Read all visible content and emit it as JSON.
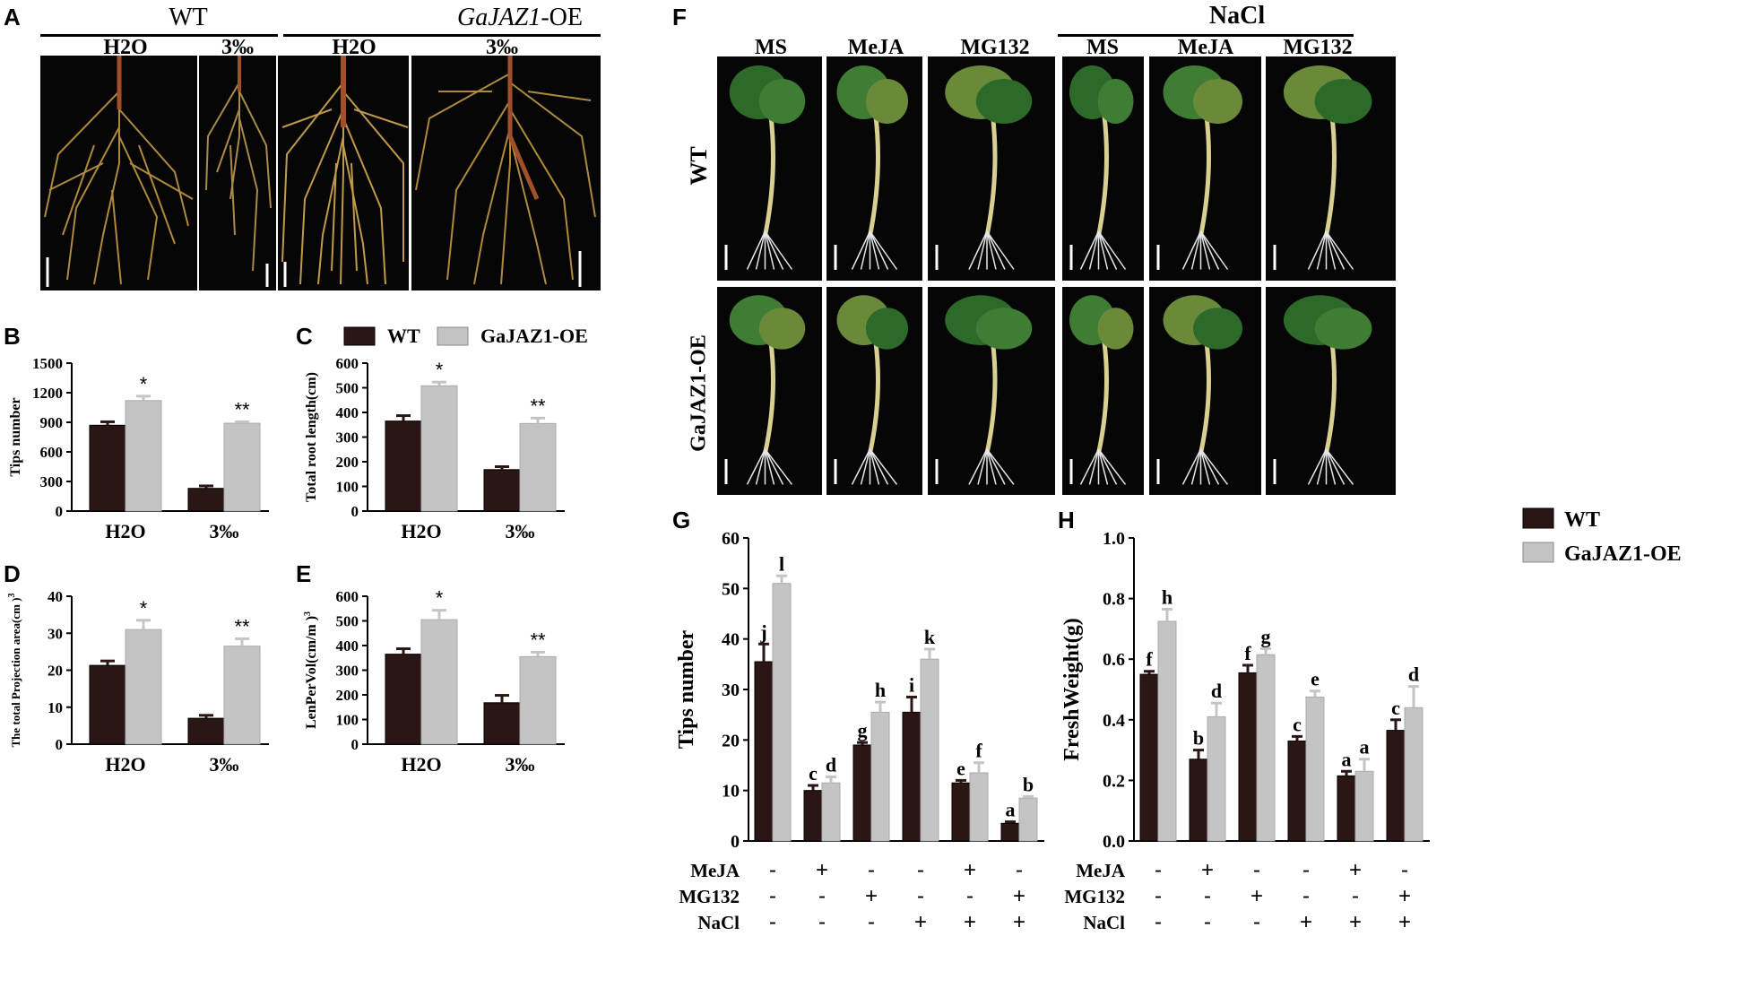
{
  "figure": {
    "letters": {
      "A": "A",
      "B": "B",
      "C": "C",
      "D": "D",
      "E": "E",
      "F": "F",
      "G": "G",
      "H": "H"
    },
    "panel_a": {
      "genotypes": [
        "WT",
        "-OE"
      ],
      "genotype_italic": "GaJAZ1",
      "conditions": [
        "H2O",
        "3‰",
        "H2O",
        "3‰"
      ]
    },
    "panel_f": {
      "nacl": "NaCl",
      "columns": [
        "MS",
        "MeJA",
        "MG132",
        "MS",
        "MeJA",
        "MG132"
      ],
      "rows": [
        "WT",
        "GaJAZ1-OE"
      ]
    }
  },
  "legend_top": {
    "wt": "WT",
    "oe": "GaJAZ1-OE"
  },
  "legend_h": {
    "wt": "WT",
    "oe": "GaJAZ1-OE"
  },
  "colors": {
    "wt": "#2a1614",
    "oe": "#c4c4c4"
  },
  "treatment_table": {
    "labels": [
      "MeJA",
      "MG132",
      "NaCl"
    ],
    "rows": [
      [
        "-",
        "+",
        "-",
        "-",
        "+",
        "-"
      ],
      [
        "-",
        "-",
        "+",
        "-",
        "-",
        "+"
      ],
      [
        "-",
        "-",
        "-",
        "+",
        "+",
        "+"
      ]
    ]
  },
  "chart_data": [
    {
      "panel": "B",
      "type": "bar",
      "ylabel": "Tips number",
      "categories": [
        "H2O",
        "3‰"
      ],
      "ylim": [
        0,
        1500
      ],
      "yticks": [
        0,
        300,
        600,
        900,
        1200,
        1500
      ],
      "series": [
        {
          "name": "WT",
          "values": [
            870,
            230
          ],
          "errors": [
            35,
            25
          ]
        },
        {
          "name": "GaJAZ1-OE",
          "values": [
            1120,
            890
          ],
          "errors": [
            45,
            15
          ]
        }
      ],
      "annotations": [
        "*",
        "**"
      ]
    },
    {
      "panel": "C",
      "type": "bar",
      "ylabel": "Total root length(cm)",
      "categories": [
        "H2O",
        "3‰"
      ],
      "ylim": [
        0,
        600
      ],
      "yticks": [
        0,
        100,
        200,
        300,
        400,
        500,
        600
      ],
      "series": [
        {
          "name": "WT",
          "values": [
            365,
            168
          ],
          "errors": [
            22,
            12
          ]
        },
        {
          "name": "GaJAZ1-OE",
          "values": [
            508,
            355
          ],
          "errors": [
            15,
            22
          ]
        }
      ],
      "annotations": [
        "*",
        "**"
      ]
    },
    {
      "panel": "D",
      "type": "bar",
      "ylabel": "The total Projection area(cm )",
      "ylabel_sup": "3",
      "categories": [
        "H2O",
        "3‰"
      ],
      "ylim": [
        0,
        40
      ],
      "yticks": [
        0,
        10,
        20,
        30,
        40
      ],
      "series": [
        {
          "name": "WT",
          "values": [
            21.3,
            7.0
          ],
          "errors": [
            1.2,
            0.8
          ]
        },
        {
          "name": "GaJAZ1-OE",
          "values": [
            31.0,
            26.5
          ],
          "errors": [
            2.5,
            2.0
          ]
        }
      ],
      "annotations": [
        "*",
        "**"
      ]
    },
    {
      "panel": "E",
      "type": "bar",
      "ylabel": "LenPerVol(cm/m )",
      "ylabel_sup": "3",
      "categories": [
        "H2O",
        "3‰"
      ],
      "ylim": [
        0,
        600
      ],
      "yticks": [
        0,
        100,
        200,
        300,
        400,
        500,
        600
      ],
      "series": [
        {
          "name": "WT",
          "values": [
            365,
            168
          ],
          "errors": [
            22,
            30
          ]
        },
        {
          "name": "GaJAZ1-OE",
          "values": [
            505,
            355
          ],
          "errors": [
            38,
            18
          ]
        }
      ],
      "annotations": [
        "*",
        "**"
      ]
    },
    {
      "panel": "G",
      "type": "bar",
      "ylabel": "Tips number",
      "ylim": [
        0,
        60
      ],
      "yticks": [
        0,
        10,
        20,
        30,
        40,
        50,
        60
      ],
      "series": [
        {
          "name": "WT",
          "values": [
            35.5,
            10,
            19,
            25.5,
            11.5,
            3.5
          ],
          "errors": [
            3.5,
            1,
            0.5,
            3,
            0.5,
            0.3
          ],
          "letters": [
            "j",
            "c",
            "g",
            "i",
            "e",
            "a"
          ]
        },
        {
          "name": "GaJAZ1-OE",
          "values": [
            51,
            11.5,
            25.5,
            36,
            13.5,
            8.5
          ],
          "errors": [
            1.5,
            1.2,
            2,
            2,
            2,
            0.3
          ],
          "letters": [
            "l",
            "d",
            "h",
            "k",
            "f",
            "b"
          ]
        }
      ]
    },
    {
      "panel": "H",
      "type": "bar",
      "ylabel": "FreshWeight(g)",
      "ylim": [
        0,
        1.0
      ],
      "yticks": [
        "0.0",
        "0.2",
        "0.4",
        "0.6",
        "0.8",
        "1.0"
      ],
      "series": [
        {
          "name": "WT",
          "values": [
            0.55,
            0.27,
            0.555,
            0.33,
            0.215,
            0.365
          ],
          "errors": [
            0.01,
            0.03,
            0.025,
            0.015,
            0.015,
            0.035
          ],
          "letters": [
            "f",
            "b",
            "f",
            "c",
            "a",
            "c"
          ]
        },
        {
          "name": "GaJAZ1-OE",
          "values": [
            0.725,
            0.41,
            0.615,
            0.475,
            0.23,
            0.44
          ],
          "errors": [
            0.04,
            0.045,
            0.02,
            0.02,
            0.04,
            0.07
          ],
          "letters": [
            "h",
            "d",
            "g",
            "e",
            "a",
            "d"
          ]
        }
      ]
    }
  ]
}
